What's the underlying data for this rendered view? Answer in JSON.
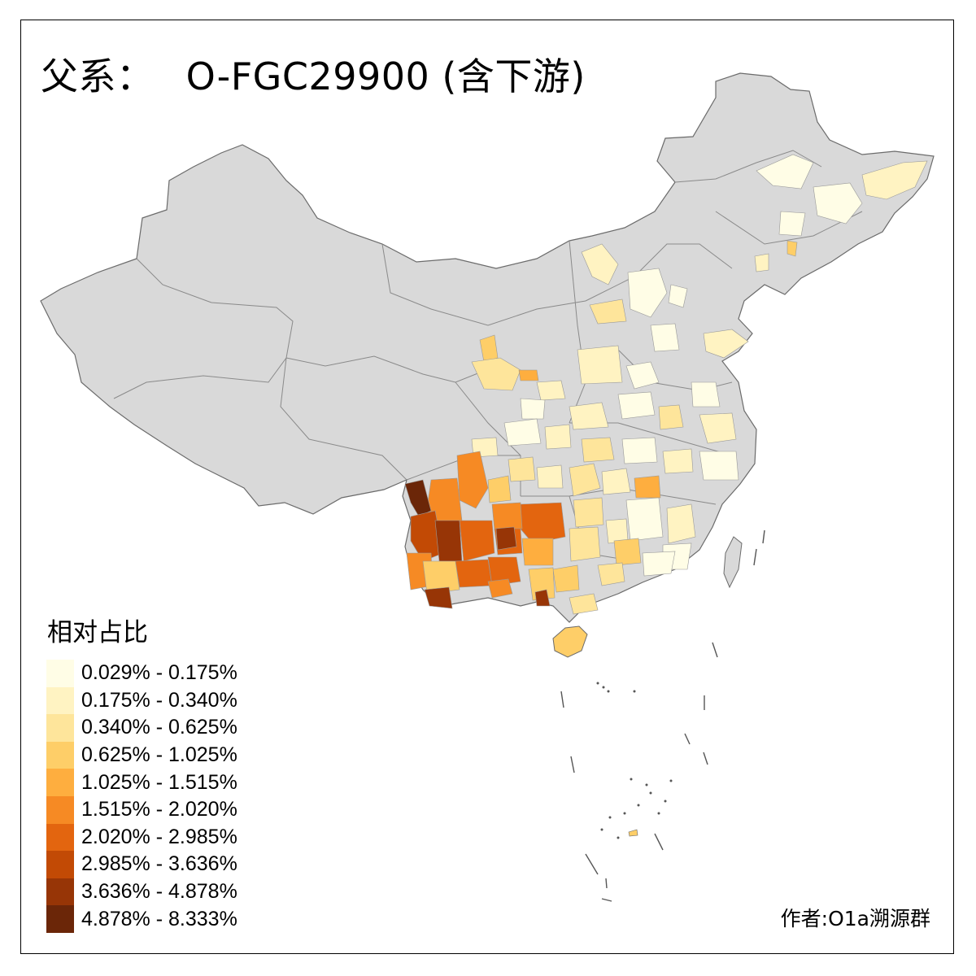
{
  "title": {
    "prefix": "父系：",
    "haplogroup": "O-FGC29900 (含下游)"
  },
  "legend": {
    "title": "相对占比",
    "classes": [
      {
        "label": "0.029% - 0.175%",
        "color": "#fffde6"
      },
      {
        "label": "0.175% - 0.340%",
        "color": "#fff3c2"
      },
      {
        "label": "0.340% - 0.625%",
        "color": "#fee59b"
      },
      {
        "label": "0.625% - 1.025%",
        "color": "#fece68"
      },
      {
        "label": "1.025% - 1.515%",
        "color": "#feae3f"
      },
      {
        "label": "1.515% - 2.020%",
        "color": "#f68a24"
      },
      {
        "label": "2.020% - 2.985%",
        "color": "#e3650f"
      },
      {
        "label": "2.985% - 3.636%",
        "color": "#c24a05"
      },
      {
        "label": "3.636% - 4.878%",
        "color": "#973506"
      },
      {
        "label": "4.878% - 8.333%",
        "color": "#6b2608"
      }
    ]
  },
  "credit": "作者:O1a溯源群",
  "map": {
    "no_data_color": "#d9d9d9",
    "border_color": "#7f7f7f"
  }
}
